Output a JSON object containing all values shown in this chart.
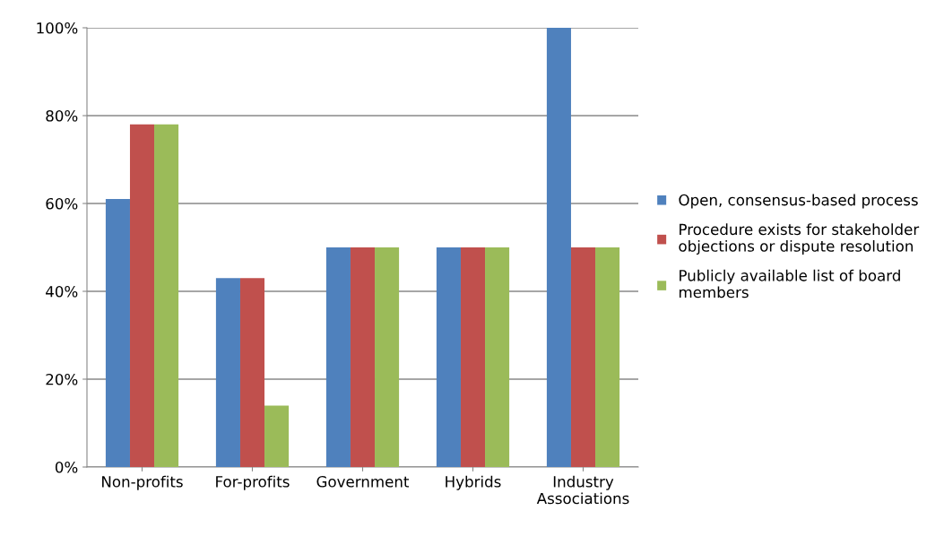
{
  "chart_data": {
    "type": "bar",
    "categories": [
      "Non-profits",
      "For-profits",
      "Government",
      "Hybrids",
      "Industry\nAssociations"
    ],
    "series": [
      {
        "name": "Open, consensus-based process",
        "color": "#4f81bd",
        "values": [
          61,
          43,
          50,
          50,
          100
        ]
      },
      {
        "name": "Procedure exists for stakeholder\nobjections or dispute resolution",
        "color": "#c0504d",
        "values": [
          78,
          43,
          50,
          50,
          50
        ]
      },
      {
        "name": "Publicly available list of board\nmembers",
        "color": "#9bbb59",
        "values": [
          78,
          14,
          50,
          50,
          50
        ]
      }
    ],
    "ylim": [
      0,
      100
    ],
    "yticks": [
      {
        "value": 0,
        "label": "0%"
      },
      {
        "value": 20,
        "label": "20%"
      },
      {
        "value": 40,
        "label": "40%"
      },
      {
        "value": 60,
        "label": "60%"
      },
      {
        "value": 80,
        "label": "80%"
      },
      {
        "value": 100,
        "label": "100%"
      }
    ],
    "grid": "y",
    "legend": "right"
  }
}
